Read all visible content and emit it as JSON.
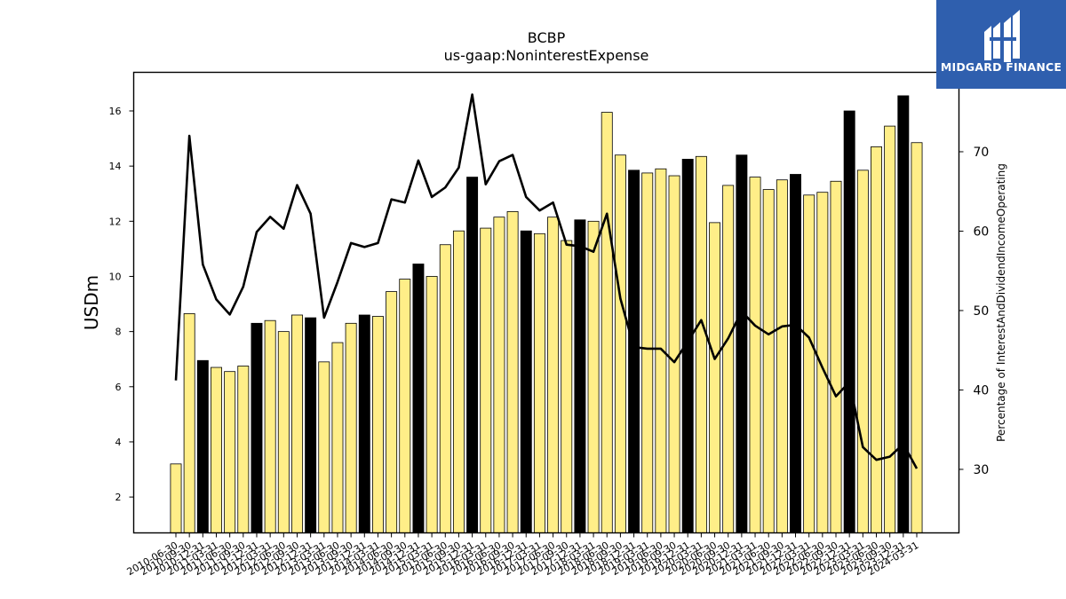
{
  "logo": {
    "text": "MIDGARD FINANCE",
    "background": "#2f5fae"
  },
  "chart_data": {
    "type": "bar",
    "title": "BCBP",
    "subtitle": "us-gaap:NoninterestExpense",
    "ylabel": "USDm",
    "y2label": "Percentage of InterestAndDividendIncomeOperating",
    "ylim": [
      0.7,
      17.4
    ],
    "y2lim": [
      22,
      80
    ],
    "yticks": [
      2,
      4,
      6,
      8,
      10,
      12,
      14,
      16
    ],
    "y2ticks": [
      30,
      40,
      50,
      60,
      70
    ],
    "tick_labels": [
      "2010-06-30",
      "2010-09-30",
      "2010-12-31",
      "2011-03-31",
      "2011-06-30",
      "2011-09-30",
      "2011-12-31",
      "2012-03-31",
      "2012-06-30",
      "2012-09-30",
      "2012-12-31",
      "2013-03-31",
      "2013-06-30",
      "2013-09-30",
      "2013-12-31",
      "2014-03-31",
      "2014-06-30",
      "2014-09-30",
      "2014-12-31",
      "2015-03-31",
      "2015-06-30",
      "2015-09-30",
      "2015-12-31",
      "2016-03-31",
      "2016-06-30",
      "2016-09-30",
      "2016-12-31",
      "2017-03-31",
      "2017-06-30",
      "2017-09-30",
      "2017-12-31",
      "2018-03-31",
      "2018-06-30",
      "2018-09-30",
      "2018-12-31",
      "2019-03-31",
      "2019-06-30",
      "2019-09-30",
      "2019-12-31",
      "2020-03-31",
      "2020-06-30",
      "2020-09-30",
      "2020-12-31",
      "2021-03-31",
      "2021-06-30",
      "2021-09-30",
      "2021-12-31",
      "2022-03-31",
      "2022-06-30",
      "2022-09-30",
      "2022-12-31",
      "2023-03-31",
      "2023-06-30",
      "2023-09-30",
      "2023-12-31",
      "2024-03-31"
    ],
    "bar_colors": {
      "highlight": "#000000",
      "normal": "#ffee88",
      "edge": "#000000"
    },
    "line_color": "#000000",
    "series": [
      {
        "type": "bar",
        "values": [
          3.2,
          8.65,
          6.95,
          6.7,
          6.55,
          6.75,
          8.3,
          8.4,
          8.0,
          8.6,
          8.5,
          6.9,
          7.6,
          8.3,
          8.6,
          8.55,
          9.45,
          9.9,
          10.45,
          10.0,
          11.15,
          11.65,
          13.6,
          11.75,
          12.15,
          12.35,
          11.65,
          11.55,
          12.15,
          11.3,
          12.05,
          12.0,
          15.95,
          14.4,
          13.85,
          13.75,
          13.9,
          13.65,
          14.25,
          14.35,
          11.95,
          13.3,
          14.4,
          13.6,
          13.15,
          13.5,
          13.7,
          12.95,
          13.05,
          13.45,
          16.0,
          13.85,
          14.7,
          15.45,
          16.55,
          14.85
        ],
        "highlight": [
          false,
          false,
          true,
          false,
          false,
          false,
          true,
          false,
          false,
          false,
          true,
          false,
          false,
          false,
          true,
          false,
          false,
          false,
          true,
          false,
          false,
          false,
          true,
          false,
          false,
          false,
          true,
          false,
          false,
          false,
          true,
          false,
          false,
          false,
          true,
          false,
          false,
          false,
          true,
          false,
          false,
          false,
          true,
          false,
          false,
          false,
          true,
          false,
          false,
          false,
          true,
          false,
          false,
          false,
          true,
          false
        ]
      },
      {
        "type": "line",
        "axis": "right",
        "values": [
          41.2,
          72.0,
          55.8,
          51.4,
          49.5,
          53.0,
          59.9,
          61.8,
          60.3,
          65.8,
          62.2,
          49.1,
          53.6,
          58.5,
          58.0,
          58.5,
          64.0,
          63.6,
          68.9,
          64.3,
          65.5,
          68.0,
          77.2,
          65.9,
          68.8,
          69.6,
          64.3,
          62.6,
          63.6,
          58.3,
          58.1,
          57.4,
          62.2,
          51.5,
          45.4,
          45.2,
          45.2,
          43.5,
          46.1,
          48.8,
          43.9,
          46.5,
          49.9,
          48.1,
          47.0,
          48.0,
          48.2,
          46.6,
          42.8,
          39.2,
          41.0,
          32.8,
          31.2,
          31.6,
          33.2,
          30.1
        ]
      }
    ],
    "grid": false
  }
}
